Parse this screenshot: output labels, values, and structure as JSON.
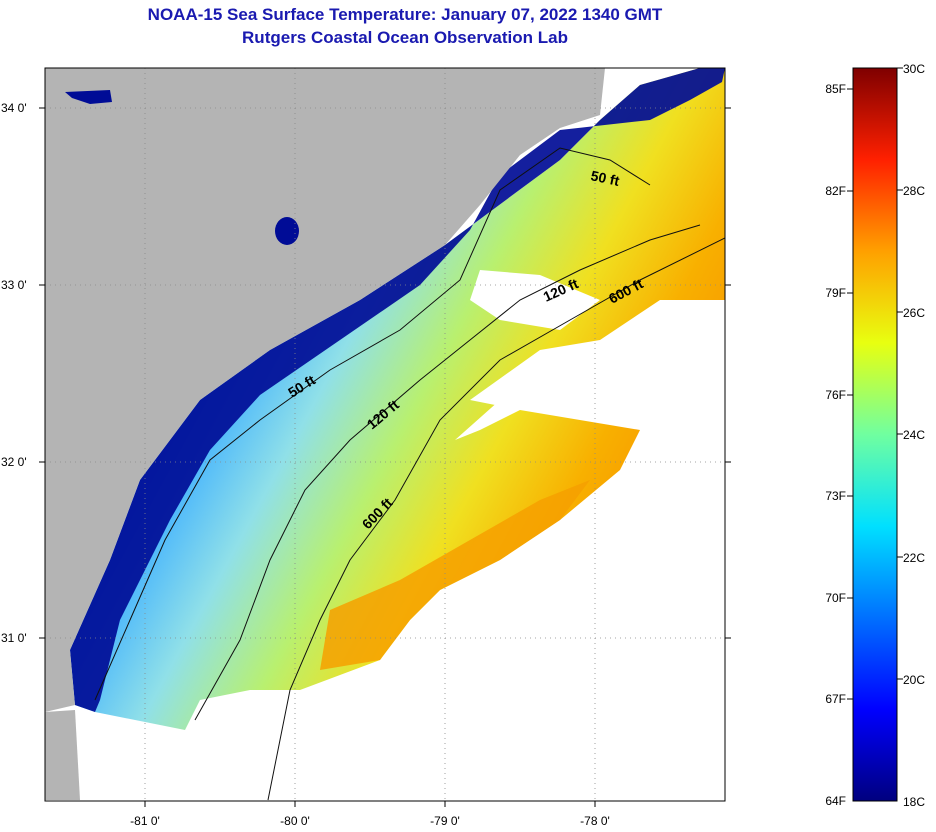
{
  "header": {
    "title": "NOAA-15 Sea Surface Temperature:  January 07, 2022 1340 GMT",
    "subtitle": "Rutgers Coastal Ocean Observation Lab"
  },
  "map": {
    "lat_labels": [
      "34 0'",
      "33 0'",
      "32 0'",
      "31 0'"
    ],
    "lon_labels": [
      "-81 0'",
      "-80 0'",
      "-79 0'",
      "-78 0'"
    ],
    "isobaths": [
      {
        "label": "50 ft",
        "depth": 50
      },
      {
        "label": "50 ft",
        "depth": 50
      },
      {
        "label": "120 ft",
        "depth": 120
      },
      {
        "label": "120 ft",
        "depth": 120
      },
      {
        "label": "600 ft",
        "depth": 600
      },
      {
        "label": "600 ft",
        "depth": 600
      }
    ],
    "colors": {
      "land": "#b4b4b4",
      "cloud": "#ffffff",
      "grid": "#888888"
    }
  },
  "colorbar": {
    "fahrenheit_labels": [
      "85F",
      "82F",
      "79F",
      "76F",
      "73F",
      "70F",
      "67F",
      "64F"
    ],
    "celsius_labels": [
      "30C",
      "28C",
      "26C",
      "24C",
      "22C",
      "20C",
      "18C"
    ],
    "range_c": [
      18,
      30
    ],
    "colors": [
      "#00007f",
      "#0000ff",
      "#0080ff",
      "#00ffff",
      "#80ff80",
      "#ffff00",
      "#ff8000",
      "#ff0000",
      "#7f0000"
    ]
  }
}
